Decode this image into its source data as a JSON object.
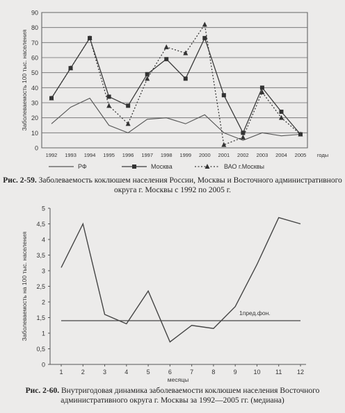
{
  "chart_data": [
    {
      "type": "line",
      "ylabel": "Заболеваемость 100 тыс. населения",
      "xlabel": "годы",
      "ylim": [
        0,
        90
      ],
      "yticks": [
        0,
        10,
        20,
        30,
        40,
        50,
        60,
        70,
        80,
        90
      ],
      "grid": true,
      "x": [
        "1992",
        "1993",
        "1994",
        "1995",
        "1996",
        "1997",
        "1998",
        "1999",
        "2000",
        "2001",
        "2002",
        "2003",
        "2004",
        "2005"
      ],
      "series": [
        {
          "name": "РФ",
          "values": [
            16,
            27,
            33,
            15,
            10,
            19,
            20,
            16,
            22,
            10,
            5,
            10,
            8,
            9
          ],
          "color": "#555555",
          "style": "solid",
          "marker": "none"
        },
        {
          "name": "Москва",
          "values": [
            33,
            53,
            73,
            34,
            28,
            49,
            59,
            46,
            73,
            35,
            10,
            40,
            24,
            9
          ],
          "color": "#3a3a3a",
          "style": "solid",
          "marker": "square"
        },
        {
          "name": "ВАО г.Москвы",
          "values": [
            33,
            53,
            73,
            28,
            16,
            46,
            67,
            63,
            82,
            2,
            7,
            37,
            20,
            9
          ],
          "color": "#3a3a3a",
          "style": "dotted",
          "marker": "triangle"
        }
      ],
      "legend_position": "bottom",
      "caption_label": "Рис. 2-59.",
      "caption_text": "Заболеваемость коклюшем населения России, Москвы и Восточного административного округа г. Москвы с 1992 по 2005 г."
    },
    {
      "type": "line",
      "ylabel": "Заболеваемость на 100 тыс. населения",
      "xlabel": "месяцы",
      "ylim": [
        0,
        5
      ],
      "yticks": [
        "0",
        "0,5",
        "1",
        "1,5",
        "2",
        "2,5",
        "3",
        "3,5",
        "4",
        "4,5",
        "5"
      ],
      "x": [
        1,
        2,
        3,
        4,
        5,
        6,
        7,
        8,
        9,
        10,
        11,
        12
      ],
      "series": [
        {
          "values": [
            3.1,
            4.5,
            1.6,
            1.3,
            2.35,
            0.72,
            1.25,
            1.15,
            1.85,
            3.2,
            4.7,
            4.5
          ],
          "color": "#444444"
        }
      ],
      "reference_line": {
        "label": "1пред.фон.",
        "value": 1.4,
        "color": "#444444"
      },
      "grid": false,
      "caption_label": "Рис. 2-60.",
      "caption_text": "Внутригодовая динамика заболеваемости коклюшем населения Восточного административного округа г. Москвы за 1992—2005 гг. (медиана)"
    }
  ]
}
